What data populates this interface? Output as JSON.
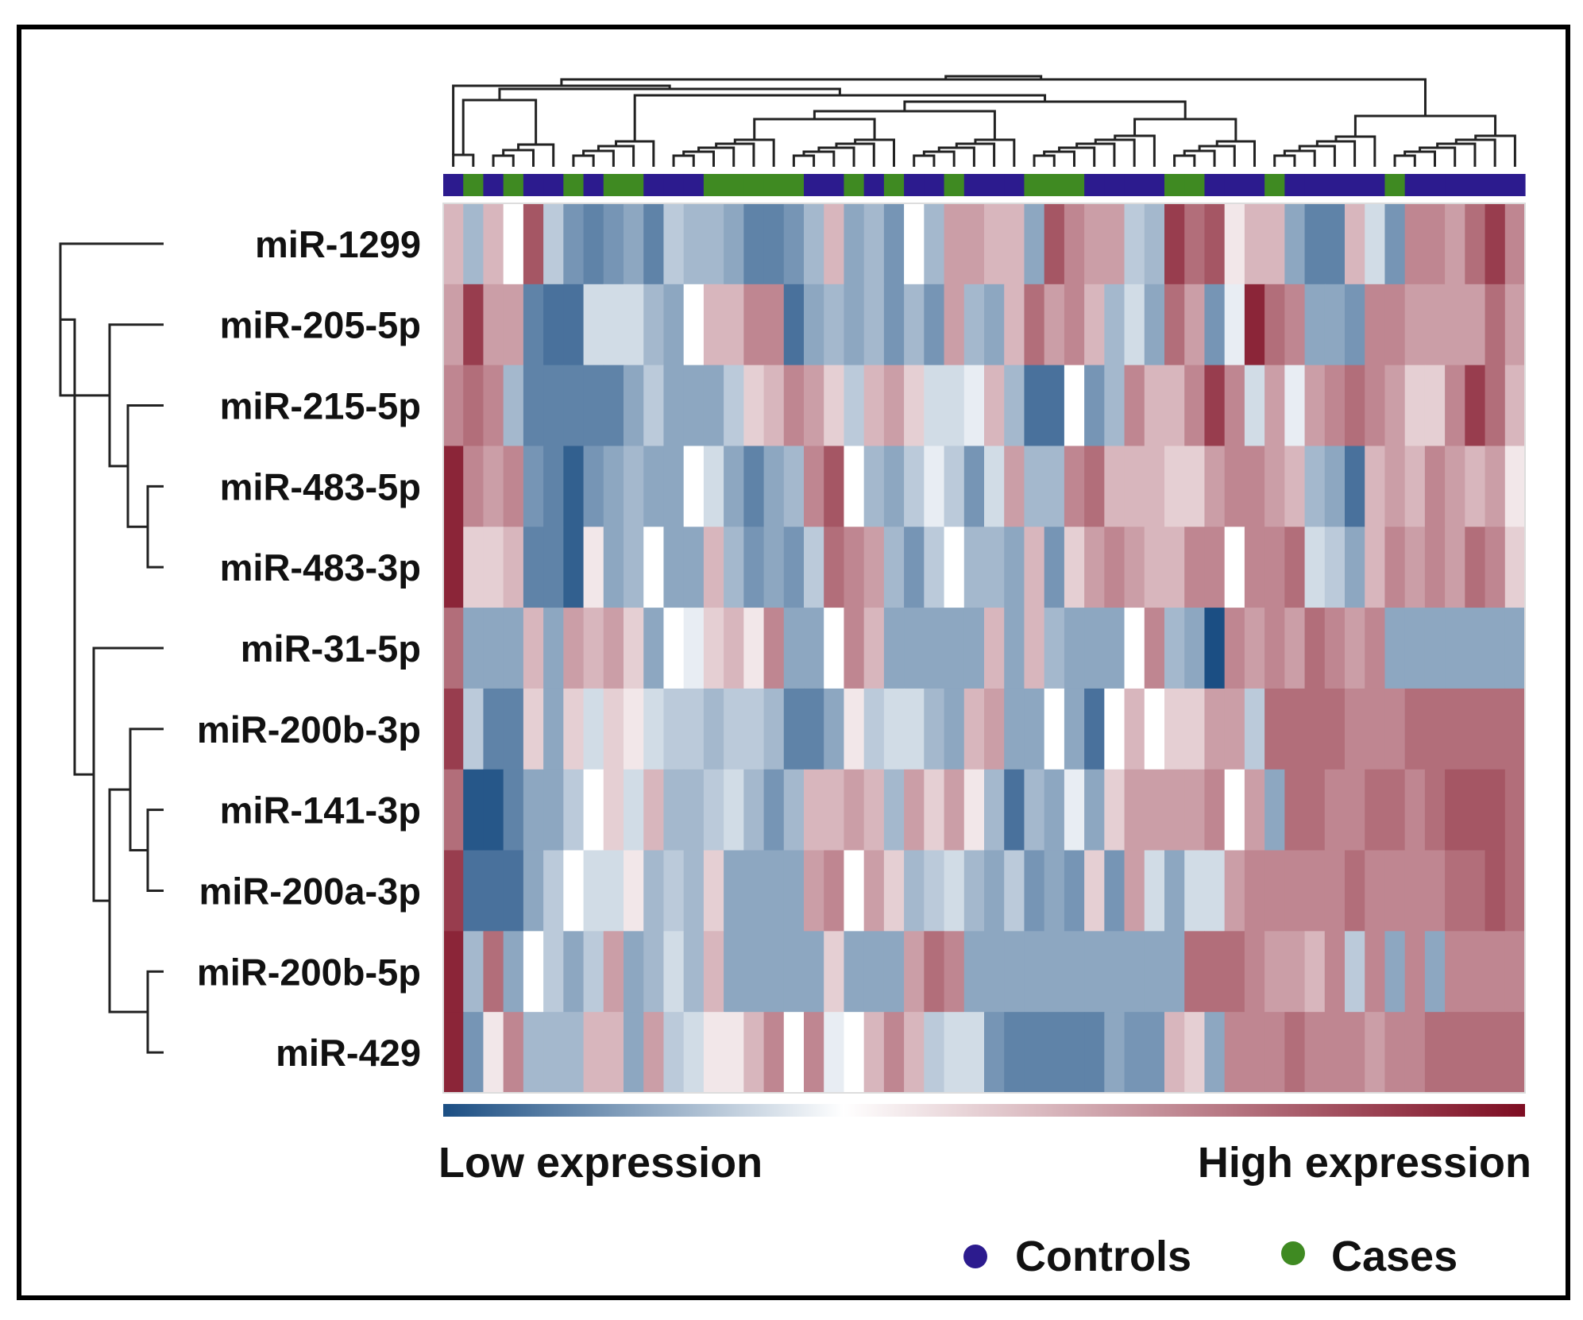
{
  "chart_data": {
    "type": "heatmap",
    "title": "",
    "rows": [
      "miR-1299",
      "miR-205-5p",
      "miR-215-5p",
      "miR-483-5p",
      "miR-483-3p",
      "miR-31-5p",
      "miR-200b-3p",
      "miR-141-3p",
      "miR-200a-3p",
      "miR-200b-5p",
      "miR-429"
    ],
    "groups": [
      "C",
      "A",
      "C",
      "A",
      "C",
      "C",
      "A",
      "C",
      "A",
      "A",
      "C",
      "C",
      "C",
      "A",
      "A",
      "A",
      "A",
      "A",
      "C",
      "C",
      "A",
      "C",
      "A",
      "C",
      "C",
      "A",
      "C",
      "C",
      "C",
      "A",
      "A",
      "A",
      "C",
      "C",
      "C",
      "C",
      "A",
      "A",
      "C",
      "C",
      "C",
      "A",
      "C",
      "C",
      "C",
      "C",
      "C",
      "A",
      "C",
      "C",
      "C",
      "C",
      "C",
      "C"
    ],
    "values": [
      [
        0.3,
        -0.4,
        0.3,
        0.0,
        0.7,
        -0.3,
        -0.6,
        -0.7,
        -0.6,
        -0.5,
        -0.7,
        -0.3,
        -0.4,
        -0.4,
        -0.5,
        -0.7,
        -0.7,
        -0.6,
        -0.4,
        0.3,
        -0.5,
        -0.4,
        -0.6,
        0.0,
        -0.4,
        0.4,
        0.4,
        0.3,
        0.3,
        -0.5,
        0.7,
        0.5,
        0.4,
        0.4,
        -0.3,
        -0.4,
        0.8,
        0.6,
        0.7,
        0.1,
        0.3,
        0.3,
        -0.5,
        -0.7,
        -0.7,
        0.3,
        -0.2,
        -0.6,
        0.5,
        0.5,
        0.4,
        0.6,
        0.8,
        0.5
      ],
      [
        0.4,
        0.8,
        0.4,
        0.4,
        -0.7,
        -0.8,
        -0.8,
        -0.2,
        -0.2,
        -0.2,
        -0.4,
        -0.5,
        0.0,
        0.3,
        0.3,
        0.5,
        0.5,
        -0.8,
        -0.5,
        -0.4,
        -0.5,
        -0.4,
        -0.6,
        -0.4,
        -0.6,
        0.4,
        -0.4,
        -0.5,
        0.3,
        0.6,
        0.4,
        0.5,
        0.3,
        -0.4,
        -0.2,
        -0.5,
        0.6,
        0.4,
        -0.6,
        -0.1,
        0.9,
        0.6,
        0.5,
        -0.5,
        -0.5,
        -0.6,
        0.5,
        0.5,
        0.4,
        0.4,
        0.4,
        0.4,
        0.6,
        0.4
      ],
      [
        0.5,
        0.6,
        0.5,
        -0.4,
        -0.7,
        -0.7,
        -0.7,
        -0.7,
        -0.7,
        -0.5,
        -0.3,
        -0.5,
        -0.5,
        -0.5,
        -0.3,
        0.2,
        0.3,
        0.5,
        0.4,
        0.2,
        -0.3,
        0.3,
        0.4,
        0.2,
        -0.2,
        -0.2,
        -0.1,
        0.3,
        -0.4,
        -0.8,
        -0.8,
        0.0,
        -0.6,
        -0.4,
        0.5,
        0.3,
        0.3,
        0.5,
        0.8,
        0.5,
        -0.2,
        0.4,
        -0.1,
        0.4,
        0.5,
        0.6,
        0.5,
        0.4,
        0.2,
        0.2,
        0.5,
        0.8,
        0.6,
        0.3
      ],
      [
        0.9,
        0.5,
        0.4,
        0.5,
        -0.6,
        -0.7,
        -0.9,
        -0.6,
        -0.5,
        -0.4,
        -0.5,
        -0.5,
        0.0,
        -0.2,
        -0.5,
        -0.7,
        -0.5,
        -0.4,
        0.5,
        0.7,
        0.0,
        -0.4,
        -0.5,
        -0.3,
        -0.1,
        -0.3,
        -0.6,
        -0.2,
        0.4,
        -0.4,
        -0.4,
        0.5,
        0.6,
        0.3,
        0.3,
        0.3,
        0.2,
        0.2,
        0.4,
        0.5,
        0.5,
        0.4,
        0.3,
        -0.4,
        -0.5,
        -0.8,
        0.3,
        0.4,
        0.3,
        0.5,
        0.4,
        0.3,
        0.4,
        0.1
      ],
      [
        0.9,
        0.2,
        0.2,
        0.3,
        -0.7,
        -0.7,
        -0.9,
        0.1,
        -0.5,
        -0.4,
        0.0,
        -0.5,
        -0.5,
        0.3,
        -0.4,
        -0.6,
        -0.5,
        -0.6,
        -0.3,
        0.6,
        0.5,
        0.4,
        -0.4,
        -0.6,
        -0.3,
        0.0,
        -0.4,
        -0.4,
        -0.5,
        0.3,
        -0.6,
        0.2,
        0.4,
        0.5,
        0.4,
        0.3,
        0.3,
        0.5,
        0.5,
        0.0,
        0.5,
        0.5,
        0.6,
        -0.2,
        -0.3,
        -0.5,
        0.3,
        0.5,
        0.4,
        0.5,
        0.4,
        0.6,
        0.5,
        0.2
      ],
      [
        0.6,
        -0.5,
        -0.5,
        -0.5,
        0.3,
        -0.5,
        0.4,
        0.3,
        0.4,
        0.2,
        -0.5,
        0.0,
        -0.1,
        0.2,
        0.3,
        0.1,
        0.5,
        -0.5,
        -0.5,
        0.0,
        0.5,
        0.3,
        -0.5,
        -0.5,
        -0.5,
        -0.5,
        -0.5,
        0.3,
        -0.5,
        0.3,
        -0.4,
        -0.5,
        -0.5,
        -0.5,
        0.0,
        0.5,
        -0.4,
        -0.5,
        -1.0,
        0.5,
        0.4,
        0.5,
        0.4,
        0.6,
        0.5,
        0.4,
        0.5,
        -0.5,
        -0.5,
        -0.5,
        -0.5,
        -0.5,
        -0.5,
        -0.5
      ],
      [
        0.8,
        -0.3,
        -0.7,
        -0.7,
        0.2,
        -0.5,
        0.2,
        -0.2,
        0.2,
        0.1,
        -0.2,
        -0.3,
        -0.3,
        -0.4,
        -0.3,
        -0.3,
        -0.4,
        -0.7,
        -0.7,
        -0.5,
        0.1,
        -0.3,
        -0.2,
        -0.2,
        -0.4,
        -0.5,
        0.3,
        0.4,
        -0.5,
        -0.5,
        0.0,
        -0.5,
        -0.8,
        0.0,
        0.3,
        0.0,
        0.2,
        0.2,
        0.4,
        0.4,
        -0.3,
        0.6,
        0.6,
        0.6,
        0.6,
        0.5,
        0.5,
        0.5,
        0.6,
        0.6,
        0.6,
        0.6,
        0.6,
        0.6
      ],
      [
        0.6,
        -0.95,
        -0.95,
        -0.7,
        -0.5,
        -0.5,
        -0.3,
        0.0,
        0.2,
        -0.2,
        0.3,
        -0.4,
        -0.4,
        -0.3,
        -0.2,
        -0.4,
        -0.6,
        -0.4,
        0.3,
        0.3,
        0.4,
        0.3,
        -0.4,
        0.4,
        0.2,
        0.4,
        0.1,
        -0.4,
        -0.8,
        -0.4,
        -0.5,
        -0.1,
        -0.5,
        0.2,
        0.4,
        0.4,
        0.4,
        0.4,
        0.5,
        0.0,
        0.4,
        -0.5,
        0.6,
        0.6,
        0.5,
        0.5,
        0.6,
        0.6,
        0.5,
        0.6,
        0.7,
        0.7,
        0.7,
        0.6
      ],
      [
        0.8,
        -0.8,
        -0.8,
        -0.8,
        -0.5,
        -0.3,
        0.0,
        -0.2,
        -0.2,
        0.1,
        -0.4,
        -0.3,
        -0.4,
        0.2,
        -0.5,
        -0.5,
        -0.5,
        -0.5,
        0.4,
        0.5,
        0.0,
        0.4,
        0.2,
        -0.4,
        -0.3,
        -0.2,
        -0.4,
        -0.5,
        -0.3,
        -0.6,
        -0.5,
        -0.6,
        0.2,
        -0.6,
        0.4,
        -0.2,
        -0.5,
        -0.2,
        -0.2,
        0.4,
        0.5,
        0.5,
        0.5,
        0.5,
        0.5,
        0.6,
        0.5,
        0.5,
        0.5,
        0.5,
        0.6,
        0.6,
        0.7,
        0.6
      ],
      [
        0.9,
        -0.4,
        0.6,
        -0.5,
        0.0,
        -0.3,
        -0.5,
        -0.3,
        0.4,
        -0.5,
        -0.4,
        -0.2,
        -0.4,
        0.3,
        -0.5,
        -0.5,
        -0.5,
        -0.5,
        -0.5,
        0.2,
        -0.5,
        -0.5,
        -0.5,
        0.4,
        0.6,
        0.5,
        -0.5,
        -0.5,
        -0.5,
        -0.5,
        -0.5,
        -0.5,
        -0.5,
        -0.5,
        -0.5,
        -0.5,
        -0.5,
        0.6,
        0.6,
        0.6,
        0.5,
        0.4,
        0.4,
        0.3,
        0.5,
        -0.3,
        0.5,
        -0.5,
        0.5,
        -0.5,
        0.5,
        0.5,
        0.5,
        0.5
      ],
      [
        0.9,
        -0.6,
        0.1,
        0.5,
        -0.4,
        -0.4,
        -0.4,
        0.3,
        0.3,
        -0.5,
        0.4,
        -0.3,
        -0.2,
        0.1,
        0.1,
        0.3,
        0.5,
        0.0,
        0.5,
        -0.1,
        0.0,
        0.3,
        0.5,
        0.3,
        -0.3,
        -0.2,
        -0.2,
        -0.6,
        -0.7,
        -0.7,
        -0.7,
        -0.7,
        -0.7,
        -0.5,
        -0.6,
        -0.6,
        0.3,
        0.2,
        -0.5,
        0.5,
        0.5,
        0.5,
        0.6,
        0.5,
        0.5,
        0.5,
        0.4,
        0.5,
        0.5,
        0.6,
        0.6,
        0.6,
        0.6,
        0.6
      ]
    ],
    "colorscale": {
      "low": "#1b4e83",
      "mid": "#ffffff",
      "high": "#7e0d22"
    },
    "colorbar_labels": {
      "low": "Low expression",
      "high": "High expression"
    },
    "legend": [
      {
        "label": "Controls",
        "color": "#2c1b8e"
      },
      {
        "label": "Cases",
        "color": "#3f8a22"
      }
    ],
    "group_colors": {
      "C": "#2c1b8e",
      "A": "#3f8a22"
    },
    "row_dendrogram": true,
    "column_dendrogram": true
  }
}
